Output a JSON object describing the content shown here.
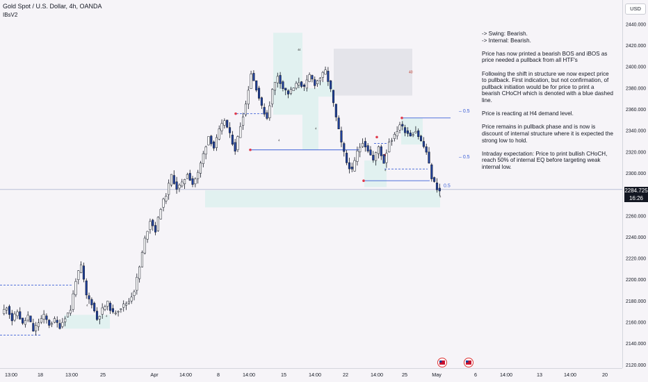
{
  "header": {
    "title": "Gold Spot / U.S. Dollar, 4h, OANDA",
    "indicator": "IBsV2"
  },
  "currency": "USD",
  "last_price": {
    "price": "2284.725",
    "countdown": "16:26"
  },
  "notes": [
    "-> Swing:  Bearish.\n-> Internal:  Bearish.",
    "Price has now printed a bearish BOS and iBOS as price needed a pullback from all HTF's",
    "Following the shift in structure we now expect price to pullback.  First indication, but not confirmation, of pullback initiation would be for price to print a bearish CHoCH which is denoted with a blue dashed line.",
    "Price is reacting at H4 demand level.",
    "Price remains in pullback phase and is now is discount of internal structure where it is expected the strong low to hold.",
    "Intraday expectation: Price to print bullish CHoCH, reach 50% of internal EQ before targeting weak internal low."
  ],
  "chart_labels": {
    "fib_upper": "0.5",
    "fib_middle": "0.5",
    "fib_lower": "0.5",
    "supply_count": "40",
    "ob_count": "4"
  },
  "colors": {
    "up": "#ffffff",
    "down": "#1e3f9a",
    "wick": "#131722",
    "demand": "#e1f1f0",
    "supply": "#e4e4ea",
    "structure": "#3b5fd6",
    "pivot": "#e03a4c"
  },
  "chart_data": {
    "type": "candlestick",
    "symbol": "XAUUSD",
    "timeframe": "4h",
    "y_ticks": [
      2120,
      2140,
      2160,
      2180,
      2200,
      2220,
      2240,
      2260,
      2280,
      2300,
      2320,
      2340,
      2360,
      2380,
      2400,
      2420,
      2440
    ],
    "ylim": [
      2117,
      2452
    ],
    "x_ticks": [
      "13:00",
      "18",
      "13:00",
      "25",
      "Apr",
      "14:00",
      "8",
      "14:00",
      "15",
      "14:00",
      "22",
      "14:00",
      "25",
      "May",
      "6",
      "14:00",
      "13",
      "14:00",
      "20"
    ],
    "last_price": 2284.725,
    "anchors": [
      [
        0,
        2168
      ],
      [
        2,
        2175
      ],
      [
        4,
        2162
      ],
      [
        6,
        2170
      ],
      [
        8,
        2158
      ],
      [
        10,
        2166
      ],
      [
        12,
        2152
      ],
      [
        14,
        2160
      ],
      [
        16,
        2166
      ],
      [
        18,
        2158
      ],
      [
        20,
        2162
      ],
      [
        22,
        2156
      ],
      [
        24,
        2165
      ],
      [
        26,
        2172
      ],
      [
        28,
        2200
      ],
      [
        30,
        2213
      ],
      [
        32,
        2185
      ],
      [
        34,
        2178
      ],
      [
        36,
        2163
      ],
      [
        38,
        2172
      ],
      [
        40,
        2178
      ],
      [
        42,
        2168
      ],
      [
        44,
        2172
      ],
      [
        46,
        2176
      ],
      [
        48,
        2180
      ],
      [
        50,
        2190
      ],
      [
        52,
        2212
      ],
      [
        54,
        2238
      ],
      [
        56,
        2256
      ],
      [
        58,
        2246
      ],
      [
        60,
        2268
      ],
      [
        62,
        2280
      ],
      [
        64,
        2298
      ],
      [
        66,
        2286
      ],
      [
        68,
        2290
      ],
      [
        70,
        2300
      ],
      [
        72,
        2290
      ],
      [
        74,
        2300
      ],
      [
        76,
        2318
      ],
      [
        78,
        2335
      ],
      [
        80,
        2324
      ],
      [
        82,
        2340
      ],
      [
        84,
        2350
      ],
      [
        86,
        2336
      ],
      [
        88,
        2322
      ],
      [
        90,
        2345
      ],
      [
        92,
        2365
      ],
      [
        94,
        2394
      ],
      [
        96,
        2380
      ],
      [
        98,
        2362
      ],
      [
        100,
        2352
      ],
      [
        102,
        2378
      ],
      [
        104,
        2392
      ],
      [
        106,
        2380
      ],
      [
        108,
        2375
      ],
      [
        110,
        2380
      ],
      [
        112,
        2386
      ],
      [
        114,
        2380
      ],
      [
        116,
        2392
      ],
      [
        118,
        2384
      ],
      [
        120,
        2390
      ],
      [
        122,
        2396
      ],
      [
        124,
        2378
      ],
      [
        126,
        2352
      ],
      [
        128,
        2328
      ],
      [
        130,
        2310
      ],
      [
        132,
        2302
      ],
      [
        134,
        2320
      ],
      [
        136,
        2330
      ],
      [
        138,
        2322
      ],
      [
        140,
        2312
      ],
      [
        142,
        2325
      ],
      [
        144,
        2310
      ],
      [
        146,
        2330
      ],
      [
        148,
        2335
      ],
      [
        150,
        2346
      ],
      [
        152,
        2340
      ],
      [
        154,
        2336
      ],
      [
        156,
        2340
      ],
      [
        158,
        2330
      ],
      [
        160,
        2320
      ],
      [
        162,
        2296
      ],
      [
        164,
        2286
      ],
      [
        165,
        2283
      ]
    ]
  }
}
